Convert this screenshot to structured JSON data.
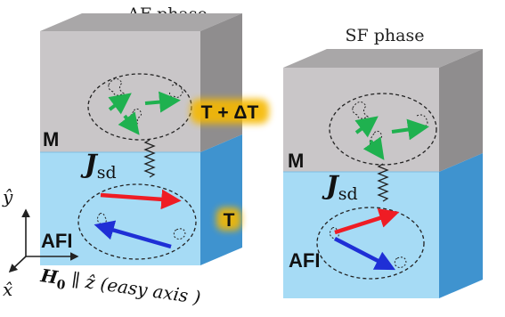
{
  "af_panel": {
    "title": "AF phase",
    "metal_label": "M",
    "afi_label": "AFI",
    "coupling": {
      "symbol": "J",
      "subscript": "sd"
    },
    "hot_label": "T + ΔT",
    "cold_label": "T"
  },
  "sf_panel": {
    "title": "SF phase",
    "metal_label": "M",
    "afi_label": "AFI",
    "coupling": {
      "symbol": "J",
      "subscript": "sd"
    }
  },
  "axes": {
    "y": "ŷ",
    "x": "x̂",
    "field": {
      "symbol": "H",
      "subscript": "0",
      "text": " ∥ ẑ (easy axis )"
    }
  },
  "colors": {
    "metal_front": "#c9c6c8",
    "metal_side": "#8f8d8e",
    "metal_top": "#a9a7a8",
    "afi_front": "#a6dbf5",
    "afi_side": "#3f93cf",
    "afi_top": "#73b6e4",
    "arrow_green": "#1fb14f",
    "arrow_red": "#ef1c24",
    "arrow_blue": "#1f2fd6",
    "glow_label": "#f6b800"
  }
}
